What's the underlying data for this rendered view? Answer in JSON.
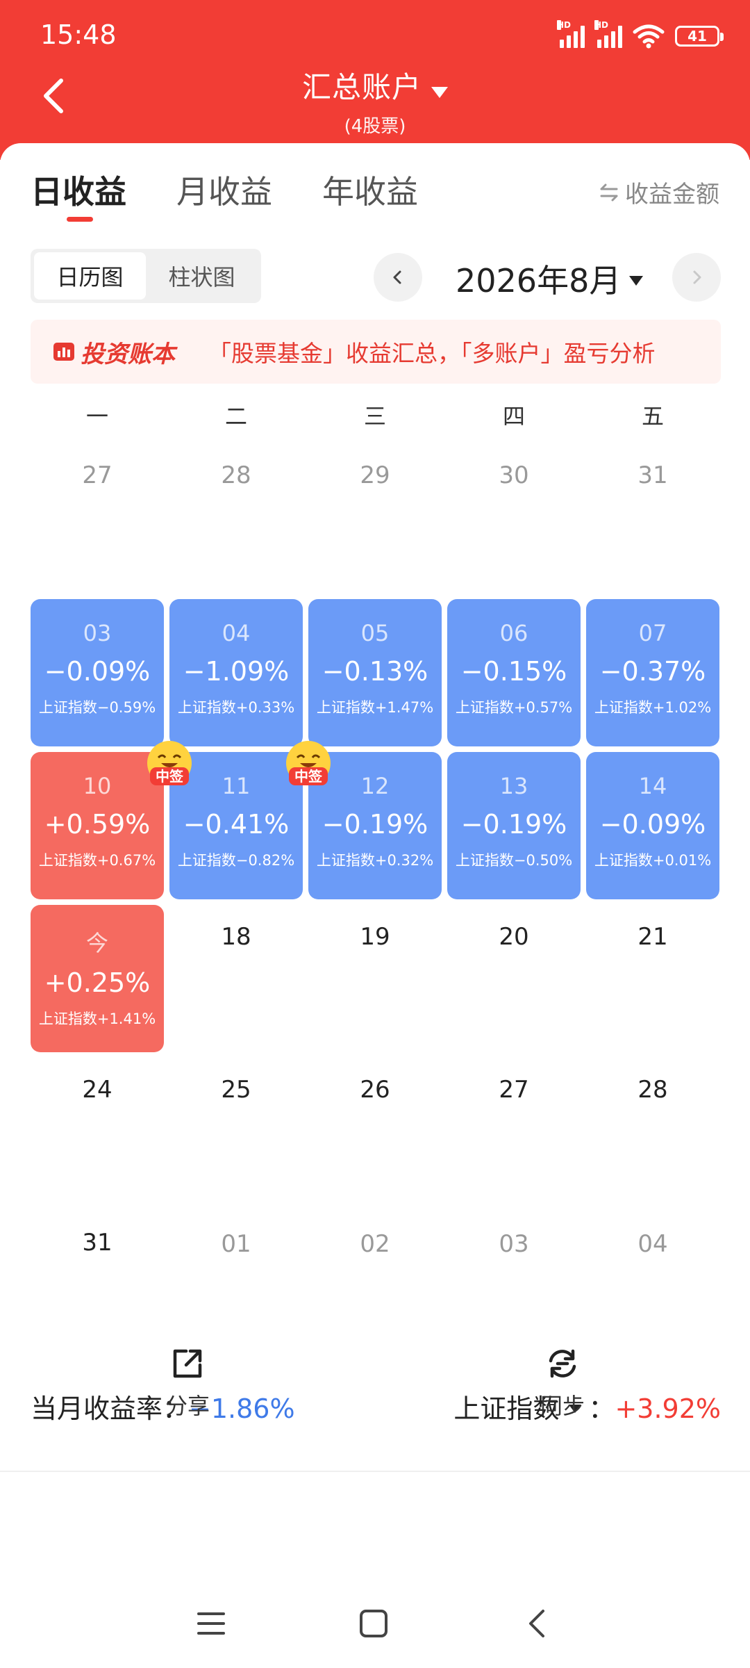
{
  "status_bar": {
    "time": "15:48",
    "battery": "41",
    "signal_label": "HD"
  },
  "header": {
    "title": "汇总账户",
    "subtitle": "(4股票)"
  },
  "tabs": [
    {
      "label": "日收益",
      "active": true
    },
    {
      "label": "月收益",
      "active": false
    },
    {
      "label": "年收益",
      "active": false
    }
  ],
  "amount_toggle": {
    "icon": "swap-arrows-icon",
    "label": "收益金额"
  },
  "view_switch": [
    {
      "label": "日历图",
      "active": true
    },
    {
      "label": "柱状图",
      "active": false
    }
  ],
  "month": {
    "label": "2026年8月"
  },
  "banner": {
    "logo_text": "投资账本",
    "text": "「股票基金」收益汇总，「多账户」盈亏分析"
  },
  "weekdays": [
    "一",
    "二",
    "三",
    "四",
    "五"
  ],
  "calendar": [
    [
      {
        "day": "27",
        "type": "other"
      },
      {
        "day": "28",
        "type": "other"
      },
      {
        "day": "29",
        "type": "other"
      },
      {
        "day": "30",
        "type": "other"
      },
      {
        "day": "31",
        "type": "other"
      }
    ],
    [
      {
        "day": "03",
        "type": "loss",
        "pct": "−0.09%",
        "idx": "上证指数−0.59%"
      },
      {
        "day": "04",
        "type": "loss",
        "pct": "−1.09%",
        "idx": "上证指数+0.33%"
      },
      {
        "day": "05",
        "type": "loss",
        "pct": "−0.13%",
        "idx": "上证指数+1.47%"
      },
      {
        "day": "06",
        "type": "loss",
        "pct": "−0.15%",
        "idx": "上证指数+0.57%"
      },
      {
        "day": "07",
        "type": "loss",
        "pct": "−0.37%",
        "idx": "上证指数+1.02%"
      }
    ],
    [
      {
        "day": "10",
        "type": "gain",
        "pct": "+0.59%",
        "idx": "上证指数+0.67%"
      },
      {
        "day": "11",
        "type": "loss",
        "pct": "−0.41%",
        "idx": "上证指数−0.82%",
        "badge": "中签"
      },
      {
        "day": "12",
        "type": "loss",
        "pct": "−0.19%",
        "idx": "上证指数+0.32%",
        "badge": "中签"
      },
      {
        "day": "13",
        "type": "loss",
        "pct": "−0.19%",
        "idx": "上证指数−0.50%"
      },
      {
        "day": "14",
        "type": "loss",
        "pct": "−0.09%",
        "idx": "上证指数+0.01%"
      }
    ],
    [
      {
        "day": "今",
        "type": "gain",
        "pct": "+0.25%",
        "idx": "上证指数+1.41%"
      },
      {
        "day": "18",
        "type": "plain"
      },
      {
        "day": "19",
        "type": "plain"
      },
      {
        "day": "20",
        "type": "plain"
      },
      {
        "day": "21",
        "type": "plain"
      }
    ],
    [
      {
        "day": "24",
        "type": "plain"
      },
      {
        "day": "25",
        "type": "plain"
      },
      {
        "day": "26",
        "type": "plain"
      },
      {
        "day": "27",
        "type": "plain"
      },
      {
        "day": "28",
        "type": "plain"
      }
    ],
    [
      {
        "day": "31",
        "type": "plain"
      },
      {
        "day": "01",
        "type": "other"
      },
      {
        "day": "02",
        "type": "other"
      },
      {
        "day": "03",
        "type": "other"
      },
      {
        "day": "04",
        "type": "other"
      }
    ]
  ],
  "summary": {
    "month_label": "当月收益率：",
    "month_value": "−1.86%",
    "index_label": "上证指数",
    "index_sep": "：",
    "index_value": "+3.92%"
  },
  "actions": [
    {
      "label": "分享",
      "icon": "share-icon"
    },
    {
      "label": "同步",
      "icon": "sync-icon"
    }
  ],
  "colors": {
    "brand": "#f23d35",
    "loss": "#6b9bf7",
    "gain": "#f56a60"
  }
}
